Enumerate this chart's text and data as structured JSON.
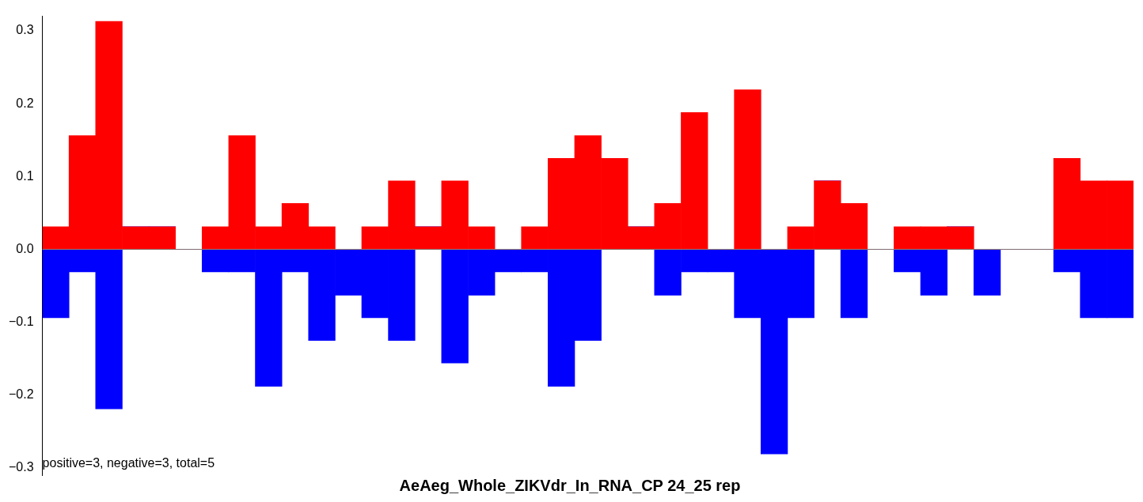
{
  "chart_data": {
    "type": "bar",
    "title": "AeAeg_Whole_ZIKVdr_In_RNA_CP 24_25 rep",
    "stacked": true,
    "categories": [
      null,
      null,
      null,
      null,
      null,
      null,
      null,
      null,
      null,
      null,
      null,
      null,
      null,
      null,
      null,
      null,
      null,
      null,
      null,
      null,
      null,
      null,
      null,
      null,
      null,
      null,
      null,
      null,
      null,
      null,
      null,
      null,
      null,
      null,
      null,
      null,
      null,
      null,
      null,
      null,
      null
    ],
    "series": [
      {
        "color": "#ff0000",
        "values": [
          0.031,
          0.156,
          0.313,
          0.031,
          0.031,
          0,
          0.031,
          0.156,
          0.031,
          0.063,
          0.031,
          0,
          0.031,
          0.094,
          0.031,
          0.094,
          0.031,
          0,
          0.031,
          0.125,
          0.156,
          0.125,
          0.031,
          0.063,
          0.188,
          0,
          0.219,
          0,
          0.031,
          0.094,
          0.063,
          0,
          0.031,
          0.031,
          0.031,
          0,
          0,
          0,
          0.125,
          0.094,
          0.094
        ]
      },
      {
        "color": "#0000ff",
        "values": [
          -0.094,
          -0.031,
          -0.219,
          0,
          0,
          0,
          -0.031,
          -0.031,
          -0.188,
          -0.031,
          -0.125,
          -0.063,
          -0.094,
          -0.125,
          0,
          -0.156,
          -0.063,
          -0.031,
          -0.031,
          -0.188,
          -0.125,
          0,
          0,
          -0.063,
          -0.031,
          -0.031,
          -0.094,
          -0.281,
          -0.094,
          0,
          -0.094,
          0,
          -0.031,
          -0.063,
          0,
          -0.063,
          0,
          0,
          -0.031,
          -0.094,
          -0.094
        ]
      }
    ],
    "ylim": [
      -0.31,
      0.32
    ],
    "yticks": [
      {
        "value": -0.3,
        "label": "−0.3"
      },
      {
        "value": -0.2,
        "label": "−0.2"
      },
      {
        "value": -0.1,
        "label": "−0.1"
      },
      {
        "value": 0,
        "label": "0.0"
      },
      {
        "value": 0.1,
        "label": "0.1"
      },
      {
        "value": 0.2,
        "label": "0.2"
      },
      {
        "value": 0.3,
        "label": "0.3"
      }
    ],
    "ref_lines": [
      {
        "axis": "y",
        "value": 0,
        "color": "#808080"
      }
    ],
    "annotations": [
      "positive=3, negative=3, total=5"
    ],
    "tick_labels": "y",
    "grid": false,
    "legend": false
  }
}
